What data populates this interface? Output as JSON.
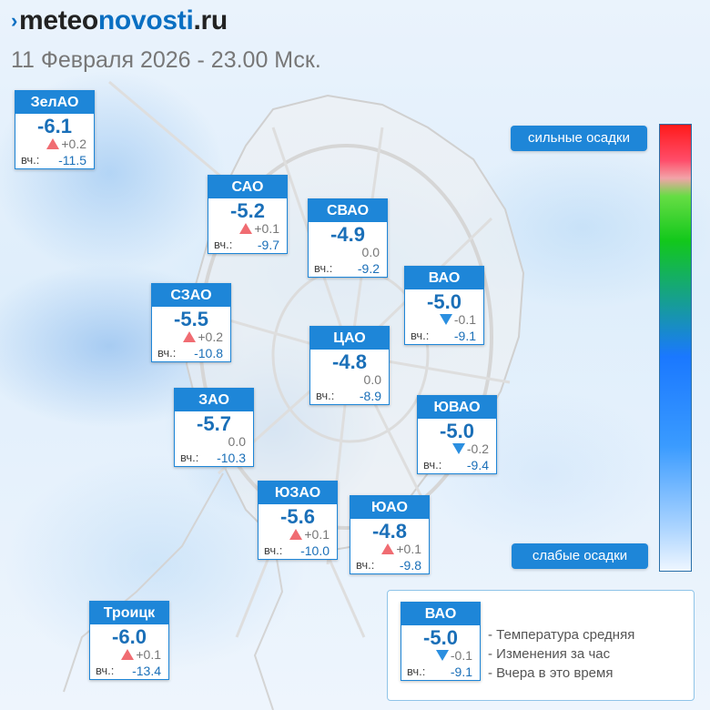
{
  "header": {
    "logo_light": "meteo",
    "logo_bold": "novosti",
    "logo_suffix": ".ru",
    "subtitle": "11 Февраля 2026 - 23.00 Мск."
  },
  "yesterday_label": "вч.:",
  "districts": [
    {
      "id": "zelao",
      "name": "ЗелАО",
      "temp": "-6.1",
      "trend": "up",
      "change": "+0.2",
      "yesterday": "-11.5"
    },
    {
      "id": "sao",
      "name": "САО",
      "temp": "-5.2",
      "trend": "up",
      "change": "+0.1",
      "yesterday": "-9.7"
    },
    {
      "id": "svao",
      "name": "СВАО",
      "temp": "-4.9",
      "trend": "none",
      "change": "0.0",
      "yesterday": "-9.2"
    },
    {
      "id": "vao",
      "name": "ВАО",
      "temp": "-5.0",
      "trend": "down",
      "change": "-0.1",
      "yesterday": "-9.1"
    },
    {
      "id": "szao",
      "name": "СЗАО",
      "temp": "-5.5",
      "trend": "up",
      "change": "+0.2",
      "yesterday": "-10.8"
    },
    {
      "id": "cao",
      "name": "ЦАО",
      "temp": "-4.8",
      "trend": "none",
      "change": "0.0",
      "yesterday": "-8.9"
    },
    {
      "id": "zao",
      "name": "ЗАО",
      "temp": "-5.7",
      "trend": "none",
      "change": "0.0",
      "yesterday": "-10.3"
    },
    {
      "id": "yuvao",
      "name": "ЮВАО",
      "temp": "-5.0",
      "trend": "down",
      "change": "-0.2",
      "yesterday": "-9.4"
    },
    {
      "id": "yuzao",
      "name": "ЮЗАО",
      "temp": "-5.6",
      "trend": "up",
      "change": "+0.1",
      "yesterday": "-10.0"
    },
    {
      "id": "yuao",
      "name": "ЮАО",
      "temp": "-4.8",
      "trend": "up",
      "change": "+0.1",
      "yesterday": "-9.8"
    },
    {
      "id": "troitsk",
      "name": "Троицк",
      "temp": "-6.0",
      "trend": "up",
      "change": "+0.1",
      "yesterday": "-13.4"
    }
  ],
  "scale": {
    "top_label": "сильные осадки",
    "bottom_label": "слабые осадки"
  },
  "legend": {
    "sample": {
      "name": "ВАО",
      "temp": "-5.0",
      "trend": "down",
      "change": "-0.1",
      "yesterday": "-9.1"
    },
    "lines": [
      "- Температура средняя",
      "- Изменения за час",
      "- Вчера в это время"
    ]
  },
  "colors": {
    "accent": "#1e86d8",
    "temperature": "#1a6fb8",
    "trend_up": "#f06c72",
    "trend_down": "#2b8fe0"
  }
}
